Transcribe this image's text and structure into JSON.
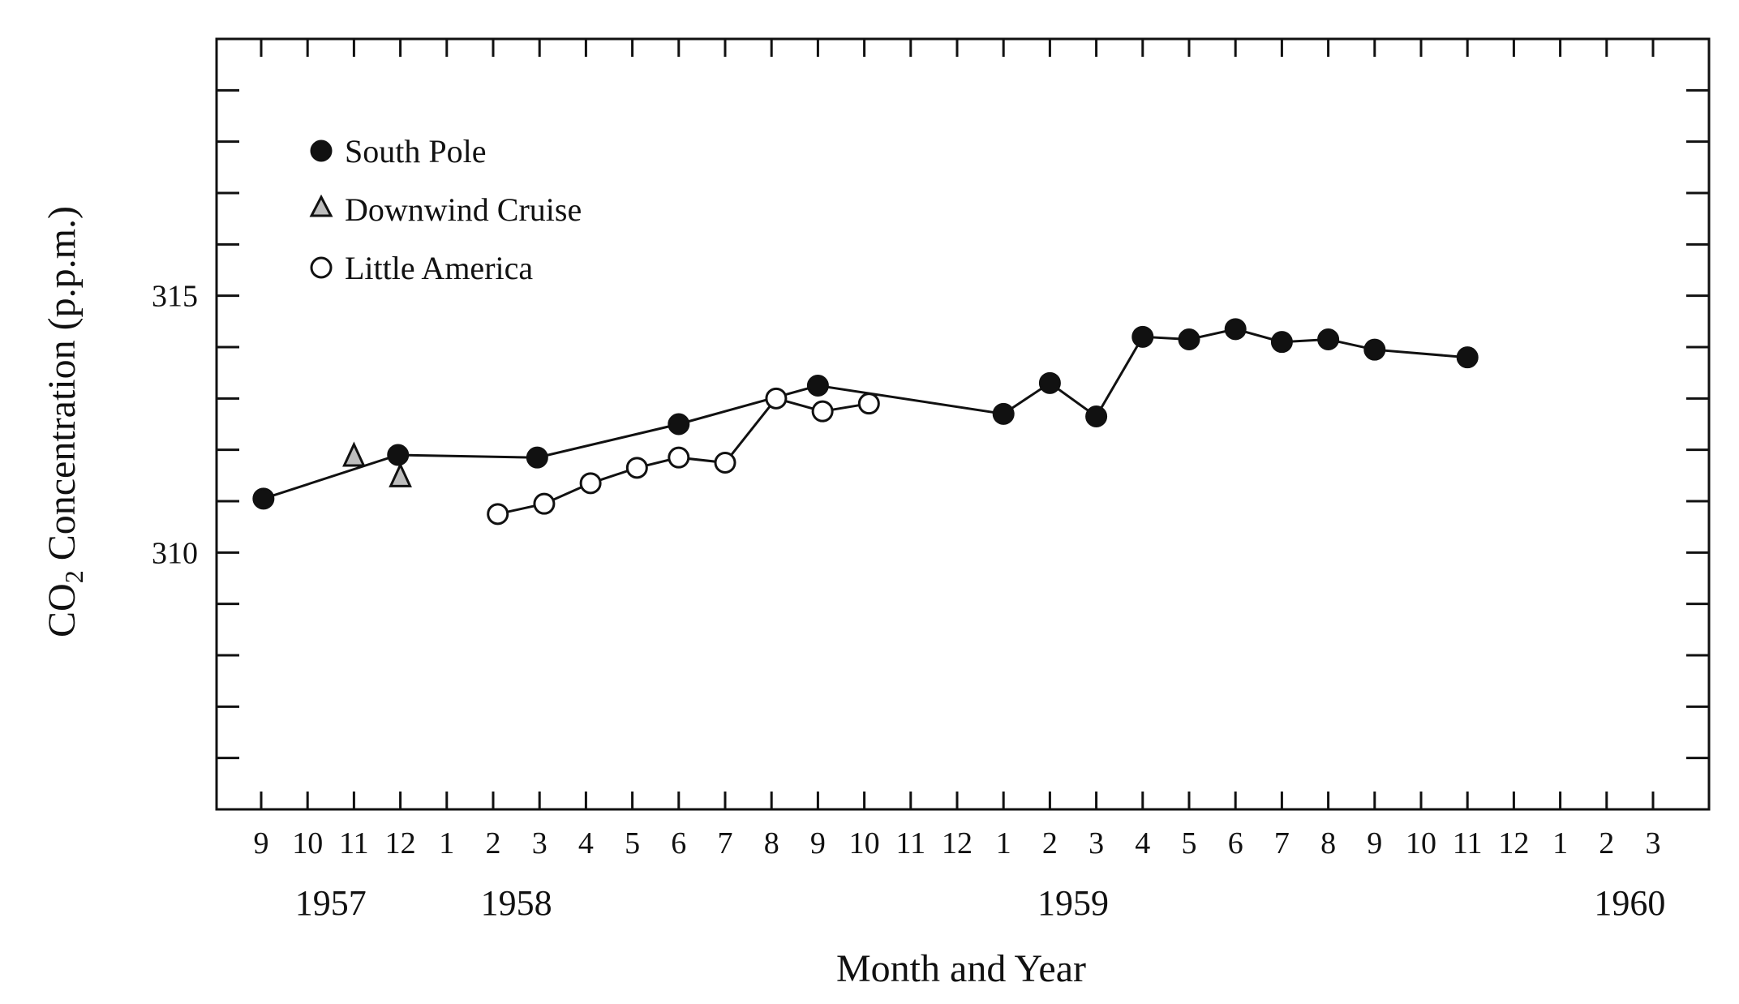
{
  "chart_data": {
    "type": "line",
    "title": "",
    "xlabel": "Month and Year",
    "ylabel": {
      "prefix": "CO",
      "subscript": "2",
      "suffix": " Concentration (p.p.m.)"
    },
    "ylim": [
      305,
      320
    ],
    "y_ticks": [
      310,
      315
    ],
    "y_minor_step": 1,
    "month_ticks": [
      "9",
      "10",
      "11",
      "12",
      "1",
      "2",
      "3",
      "4",
      "5",
      "6",
      "7",
      "8",
      "9",
      "10",
      "11",
      "12",
      "1",
      "2",
      "3",
      "4",
      "5",
      "6",
      "7",
      "8",
      "9",
      "10",
      "11",
      "12",
      "1",
      "2",
      "3"
    ],
    "year_labels": [
      {
        "text": "1957",
        "month_index": 1.5
      },
      {
        "text": "1958",
        "month_index": 5.5
      },
      {
        "text": "1959",
        "month_index": 17.5
      },
      {
        "text": "1960",
        "month_index": 29.5
      }
    ],
    "x_unit_note": "month_index 0 = Sep 1957, 30 = Mar 1960",
    "grid": false,
    "legend_position": "top-left",
    "series": [
      {
        "name": "South Pole",
        "marker": "filled-circle",
        "connect": true,
        "points": [
          {
            "x": 0.05,
            "y": 311.05
          },
          {
            "x": 2.95,
            "y": 311.9
          },
          {
            "x": 5.95,
            "y": 311.85
          },
          {
            "x": 9.0,
            "y": 312.5
          },
          {
            "x": 12.0,
            "y": 313.25
          },
          {
            "x": 16.0,
            "y": 312.7
          },
          {
            "x": 17.0,
            "y": 313.3
          },
          {
            "x": 18.0,
            "y": 312.65
          },
          {
            "x": 19.0,
            "y": 314.2
          },
          {
            "x": 20.0,
            "y": 314.15
          },
          {
            "x": 21.0,
            "y": 314.35
          },
          {
            "x": 22.0,
            "y": 314.1
          },
          {
            "x": 23.0,
            "y": 314.15
          },
          {
            "x": 24.0,
            "y": 313.95
          },
          {
            "x": 26.0,
            "y": 313.8
          }
        ]
      },
      {
        "name": "Downwind Cruise",
        "marker": "gray-triangle",
        "connect": false,
        "points": [
          {
            "x": 2.0,
            "y": 311.9
          },
          {
            "x": 3.0,
            "y": 311.5
          }
        ]
      },
      {
        "name": "Little America",
        "marker": "open-circle",
        "connect": true,
        "points": [
          {
            "x": 5.1,
            "y": 310.75
          },
          {
            "x": 6.1,
            "y": 310.95
          },
          {
            "x": 7.1,
            "y": 311.35
          },
          {
            "x": 8.1,
            "y": 311.65
          },
          {
            "x": 9.0,
            "y": 311.85
          },
          {
            "x": 10.0,
            "y": 311.75
          },
          {
            "x": 11.1,
            "y": 313.0
          },
          {
            "x": 12.1,
            "y": 312.75
          },
          {
            "x": 13.1,
            "y": 312.9
          }
        ]
      }
    ]
  }
}
